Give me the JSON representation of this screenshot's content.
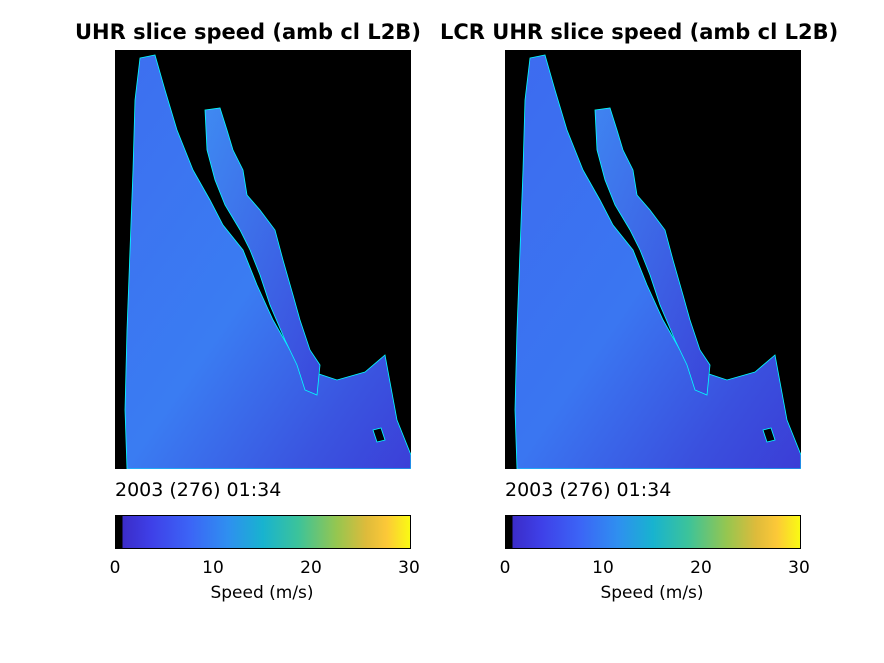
{
  "panels": [
    {
      "title": "UHR slice speed (amb cl L2B)",
      "timestamp": "2003 (276) 01:34",
      "colorbar": {
        "ticks": [
          "0",
          "10",
          "20",
          "30"
        ],
        "label": "Speed (m/s)",
        "range": [
          0,
          30
        ]
      }
    },
    {
      "title": "LCR UHR slice speed (amb cl L2B)",
      "timestamp": "2003 (276) 01:34",
      "colorbar": {
        "ticks": [
          "0",
          "10",
          "20",
          "30"
        ],
        "label": "Speed (m/s)",
        "range": [
          0,
          30
        ]
      }
    }
  ],
  "colors": {
    "land": "#000000",
    "coastline": "#00ffff",
    "ocean_low": "#3b3fd8",
    "ocean_mid": "#3d6ff0",
    "colormap": "parula"
  }
}
